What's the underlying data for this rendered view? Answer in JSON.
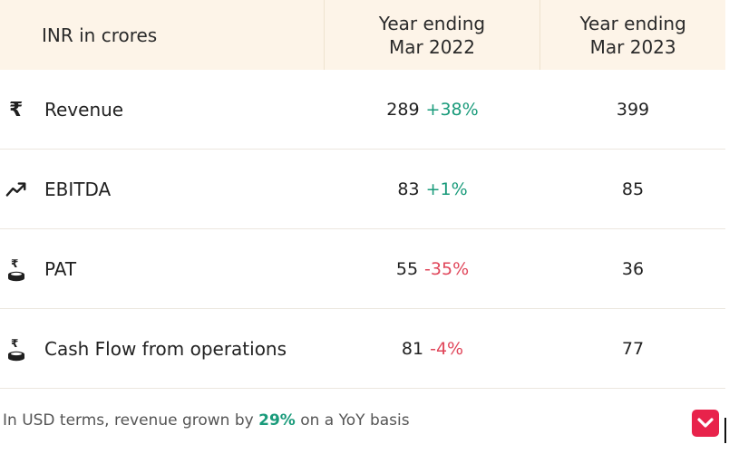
{
  "table": {
    "header": {
      "label": "INR in crores",
      "year1_line1": "Year ending",
      "year1_line2": "Mar 2022",
      "year2_line1": "Year ending",
      "year2_line2": "Mar 2023"
    },
    "rows": [
      {
        "icon": "rupee-icon",
        "name": "Revenue",
        "y2022": "289",
        "change": "+38%",
        "y2023": "399"
      },
      {
        "icon": "trend-up-icon",
        "name": "EBITDA",
        "y2022": "83",
        "change": "+1%",
        "y2023": "85"
      },
      {
        "icon": "rupee-coins-icon",
        "name": "PAT",
        "y2022": "55",
        "change": "-35%",
        "y2023": "36"
      },
      {
        "icon": "rupee-coins-icon",
        "name": "Cash Flow from operations",
        "y2022": "81",
        "change": "-4%",
        "y2023": "77"
      }
    ]
  },
  "footer": {
    "text_before": "In USD terms, revenue grown by ",
    "highlight": "29%",
    "text_after": " on a YoY basis"
  },
  "colors": {
    "positive": "#1a9b7b",
    "negative": "#e0465a",
    "header_bg": "#fdf4e8",
    "logo": "#e8234b"
  }
}
